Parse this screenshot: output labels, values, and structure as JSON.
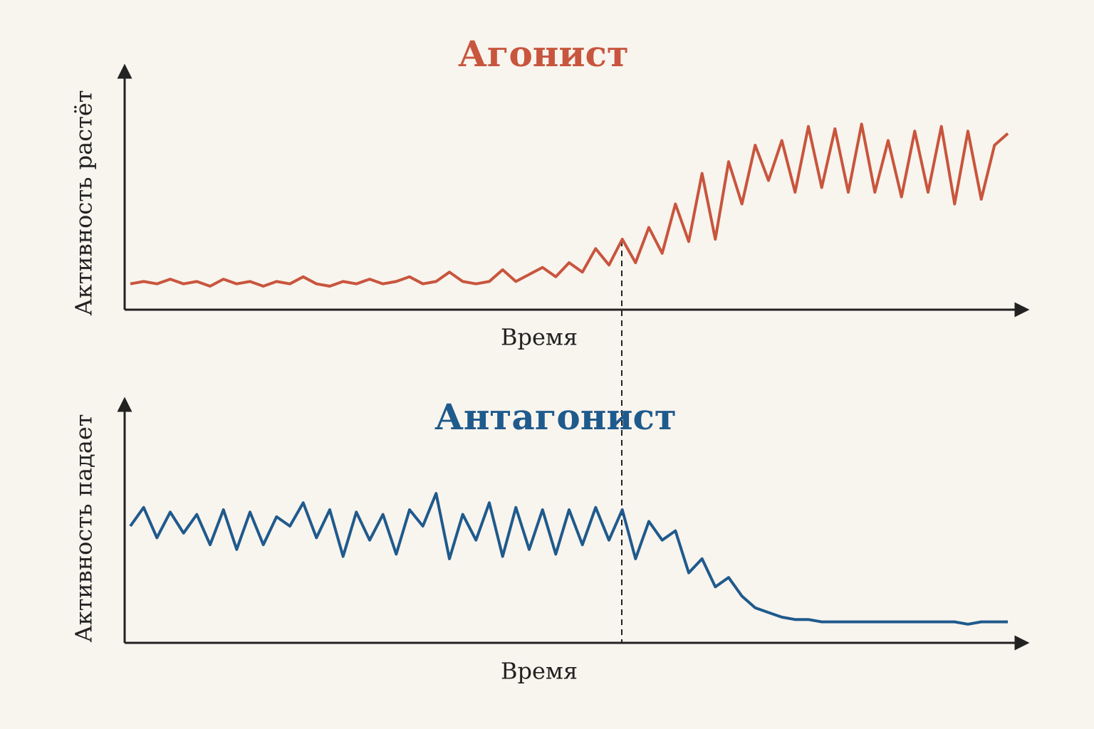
{
  "chart_data": [
    {
      "type": "line",
      "title": "Агонист",
      "x_label": "Время",
      "y_label": "Активность растёт",
      "color": "#c8553d",
      "ylim": [
        0,
        100
      ],
      "values": [
        11,
        12,
        11,
        13,
        11,
        12,
        10,
        13,
        11,
        12,
        10,
        12,
        11,
        14,
        11,
        10,
        12,
        11,
        13,
        11,
        12,
        14,
        11,
        12,
        16,
        12,
        11,
        12,
        17,
        12,
        15,
        18,
        14,
        20,
        16,
        26,
        19,
        30,
        20,
        35,
        24,
        45,
        29,
        58,
        30,
        63,
        45,
        70,
        55,
        72,
        50,
        78,
        52,
        77,
        50,
        79,
        50,
        72,
        48,
        76,
        50,
        78,
        45,
        76,
        47,
        70,
        75
      ]
    },
    {
      "type": "line",
      "title": "Антагонист",
      "x_label": "Время",
      "y_label": "Активность падает",
      "color": "#1f5a8c",
      "ylim": [
        0,
        100
      ],
      "values": [
        50,
        58,
        45,
        56,
        47,
        55,
        42,
        57,
        40,
        56,
        42,
        54,
        50,
        60,
        45,
        57,
        37,
        56,
        44,
        55,
        38,
        57,
        50,
        64,
        36,
        55,
        44,
        60,
        37,
        58,
        40,
        57,
        38,
        57,
        42,
        58,
        44,
        57,
        36,
        52,
        44,
        48,
        30,
        36,
        24,
        28,
        20,
        15,
        13,
        11,
        10,
        10,
        9,
        9,
        9,
        9,
        9,
        9,
        9,
        9,
        9,
        9,
        9,
        8,
        9,
        9,
        9
      ]
    }
  ]
}
